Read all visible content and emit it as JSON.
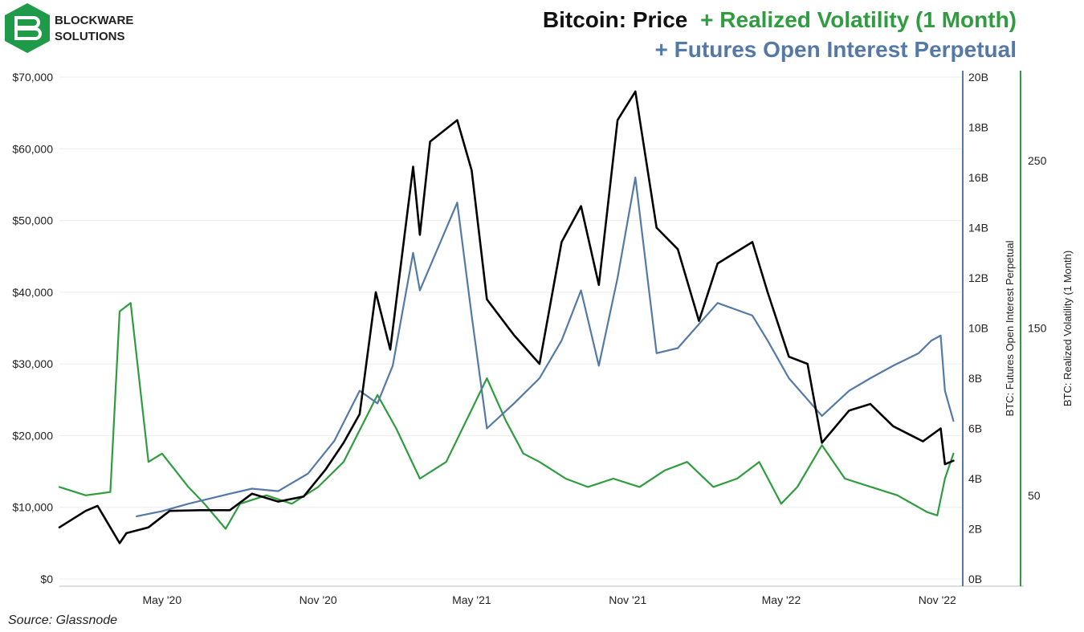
{
  "logo": {
    "line1": "BLOCKWARE",
    "line2": "SOLUTIONS",
    "color": "#1f9a48"
  },
  "title": {
    "line1_part1": "Bitcoin: Price",
    "line1_part2": "+ Realized Volatility (1 Month)",
    "line2": "+ Futures Open Interest Perpetual"
  },
  "source": "Source: Glassnode",
  "colors": {
    "price": "#000000",
    "volatility": "#2e9c3f",
    "open_interest": "#5579a6",
    "grid": "#ececec"
  },
  "chart_data": {
    "type": "line",
    "x_axis": {
      "ticks": [
        "May '20",
        "Nov '20",
        "May '21",
        "Nov '21",
        "May '22",
        "Nov '22"
      ],
      "range": [
        "2020-01",
        "2022-12"
      ]
    },
    "y_left": {
      "label": "",
      "ticks": [
        "$0",
        "$10,000",
        "$20,000",
        "$30,000",
        "$40,000",
        "$50,000",
        "$60,000",
        "$70,000"
      ],
      "range": [
        0,
        70000
      ]
    },
    "y_right1": {
      "label": "BTC: Futures Open Interest Perpetual",
      "ticks": [
        "0B",
        "2B",
        "4B",
        "6B",
        "8B",
        "10B",
        "12B",
        "14B",
        "16B",
        "18B",
        "20B"
      ],
      "range": [
        0,
        20
      ]
    },
    "y_right2": {
      "label": "BTC: Realized Volatility (1 Month)",
      "ticks": [
        "50",
        "150",
        "250"
      ],
      "range": [
        0,
        300
      ]
    },
    "grid": true,
    "series": [
      {
        "name": "Price",
        "axis": "y_left",
        "color": "#000000",
        "x": [
          "2020-01-01",
          "2020-02-01",
          "2020-02-15",
          "2020-03-12",
          "2020-03-20",
          "2020-04-15",
          "2020-05-10",
          "2020-06-15",
          "2020-07-20",
          "2020-08-15",
          "2020-09-15",
          "2020-10-15",
          "2020-11-10",
          "2020-12-01",
          "2020-12-20",
          "2021-01-08",
          "2021-01-25",
          "2021-02-21",
          "2021-03-01",
          "2021-03-13",
          "2021-04-14",
          "2021-05-01",
          "2021-05-19",
          "2021-06-20",
          "2021-07-20",
          "2021-08-15",
          "2021-09-07",
          "2021-09-28",
          "2021-10-20",
          "2021-11-10",
          "2021-12-05",
          "2021-12-30",
          "2022-01-24",
          "2022-02-15",
          "2022-03-28",
          "2022-04-15",
          "2022-05-10",
          "2022-06-01",
          "2022-06-18",
          "2022-07-20",
          "2022-08-14",
          "2022-09-10",
          "2022-10-15",
          "2022-11-05",
          "2022-11-10",
          "2022-11-20"
        ],
        "y": [
          7200,
          9500,
          10200,
          5000,
          6400,
          7200,
          9500,
          9600,
          9600,
          11900,
          10800,
          11500,
          15300,
          19000,
          23000,
          40000,
          32000,
          57500,
          48000,
          61000,
          64000,
          57000,
          39000,
          34000,
          30000,
          47000,
          52000,
          41000,
          64000,
          68000,
          49000,
          46000,
          36000,
          44000,
          47000,
          40000,
          31000,
          30000,
          19000,
          23500,
          24400,
          21300,
          19200,
          21000,
          16000,
          16500
        ]
      },
      {
        "name": "Futures Open Interest Perpetual",
        "axis": "y_right1",
        "color": "#5579a6",
        "x": [
          "2020-04-01",
          "2020-05-01",
          "2020-06-01",
          "2020-07-20",
          "2020-08-15",
          "2020-09-15",
          "2020-10-20",
          "2020-11-20",
          "2020-12-20",
          "2021-01-10",
          "2021-01-28",
          "2021-02-21",
          "2021-03-01",
          "2021-04-14",
          "2021-05-01",
          "2021-05-19",
          "2021-06-20",
          "2021-07-20",
          "2021-08-15",
          "2021-09-07",
          "2021-09-28",
          "2021-10-20",
          "2021-11-10",
          "2021-12-05",
          "2021-12-30",
          "2022-02-15",
          "2022-03-28",
          "2022-04-15",
          "2022-05-10",
          "2022-06-18",
          "2022-07-20",
          "2022-08-14",
          "2022-09-10",
          "2022-10-10",
          "2022-10-25",
          "2022-11-05",
          "2022-11-10",
          "2022-11-20"
        ],
        "y": [
          2.5,
          2.7,
          3.0,
          3.4,
          3.6,
          3.5,
          4.2,
          5.5,
          7.5,
          7.0,
          8.5,
          13.0,
          11.5,
          15.0,
          10.5,
          6.0,
          7.0,
          8.0,
          9.5,
          11.5,
          8.5,
          12.0,
          16.0,
          9.0,
          9.2,
          11.0,
          10.5,
          9.5,
          8.0,
          6.5,
          7.5,
          8.0,
          8.5,
          9.0,
          9.5,
          9.7,
          7.5,
          6.3
        ]
      },
      {
        "name": "Realized Volatility (1 Month)",
        "axis": "y_right2",
        "color": "#2e9c3f",
        "x": [
          "2020-01-01",
          "2020-02-01",
          "2020-03-01",
          "2020-03-12",
          "2020-03-25",
          "2020-04-15",
          "2020-05-01",
          "2020-06-01",
          "2020-06-20",
          "2020-07-15",
          "2020-08-01",
          "2020-09-01",
          "2020-10-01",
          "2020-11-01",
          "2020-12-01",
          "2021-01-10",
          "2021-02-01",
          "2021-03-01",
          "2021-04-01",
          "2021-05-19",
          "2021-06-10",
          "2021-07-01",
          "2021-07-20",
          "2021-08-20",
          "2021-09-15",
          "2021-10-15",
          "2021-11-15",
          "2021-12-15",
          "2022-01-10",
          "2022-02-10",
          "2022-03-10",
          "2022-04-05",
          "2022-05-01",
          "2022-05-20",
          "2022-06-18",
          "2022-07-15",
          "2022-08-15",
          "2022-09-15",
          "2022-10-20",
          "2022-11-01",
          "2022-11-10",
          "2022-11-20"
        ],
        "y": [
          55,
          50,
          52,
          160,
          165,
          70,
          75,
          55,
          45,
          30,
          45,
          50,
          45,
          55,
          70,
          110,
          90,
          60,
          70,
          120,
          95,
          75,
          70,
          60,
          55,
          60,
          55,
          65,
          70,
          55,
          60,
          70,
          45,
          55,
          80,
          60,
          55,
          50,
          40,
          38,
          60,
          75
        ]
      }
    ]
  }
}
